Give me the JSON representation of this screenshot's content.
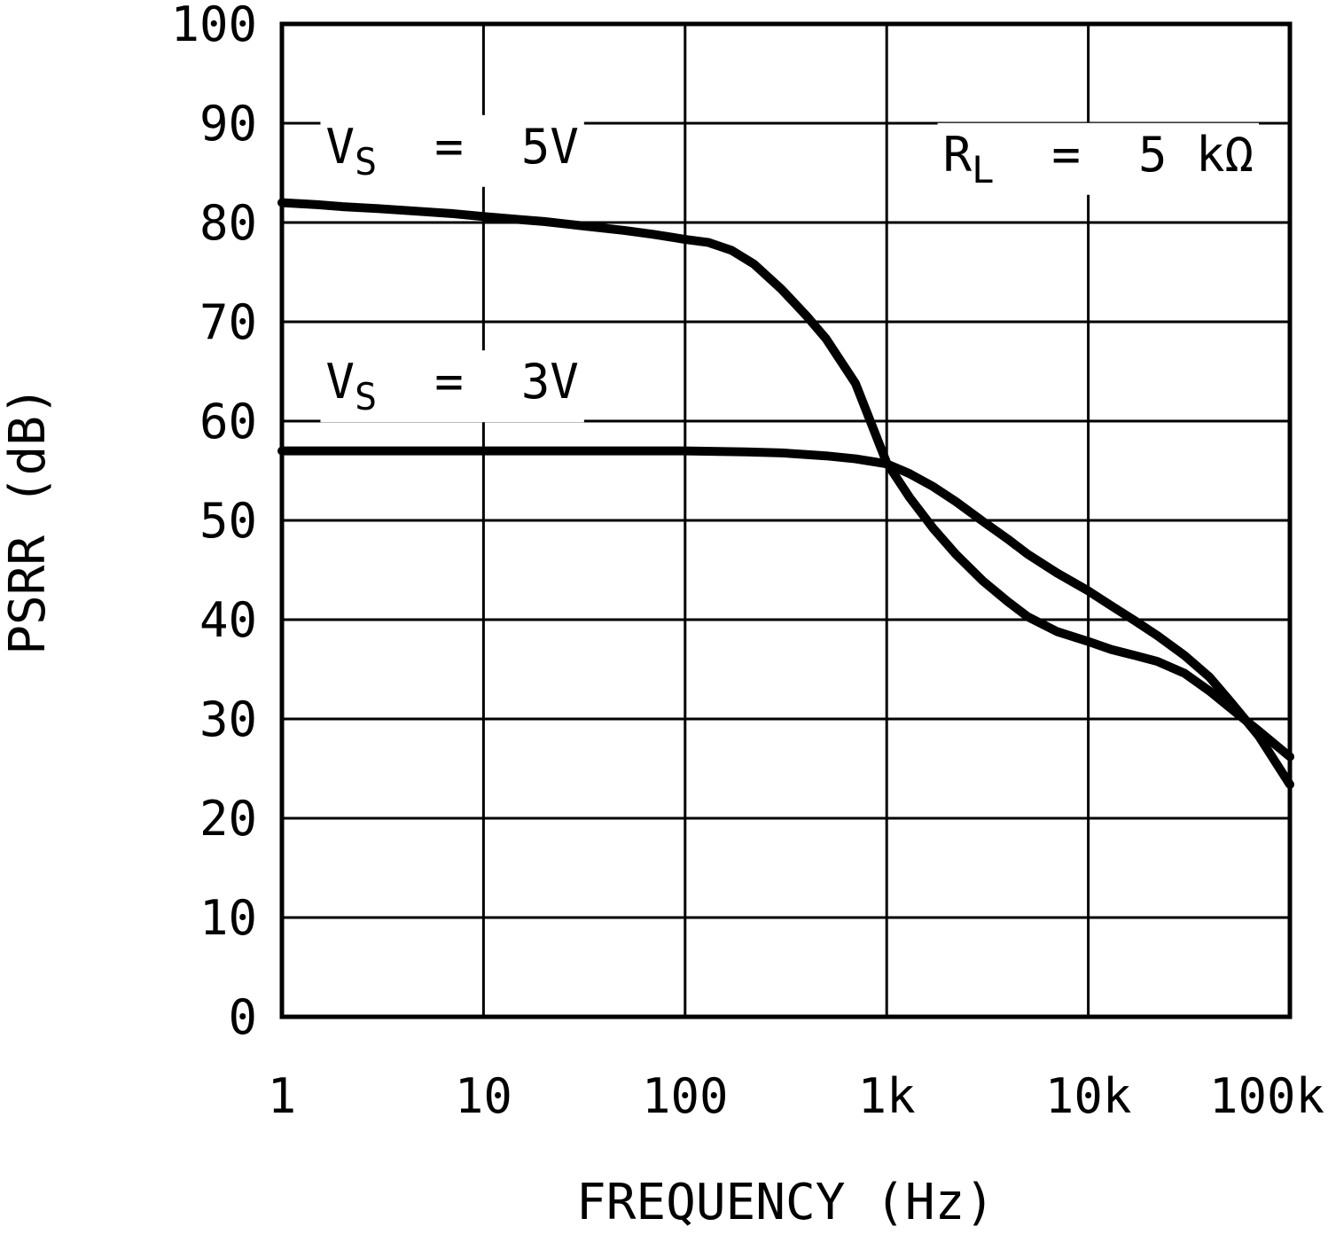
{
  "chart_data": {
    "type": "line",
    "title": "",
    "xlabel": "FREQUENCY (Hz)",
    "ylabel": "PSRR (dB)",
    "x_scale": "log",
    "xlim": [
      1,
      100000
    ],
    "ylim": [
      0,
      100
    ],
    "grid": true,
    "legend_position": "inline-annotations",
    "colors": {
      "line": "#000000",
      "grid": "#000000",
      "background": "#ffffff"
    },
    "x_ticks": [
      {
        "value": 1,
        "label": "1"
      },
      {
        "value": 10,
        "label": "10"
      },
      {
        "value": 100,
        "label": "100"
      },
      {
        "value": 1000,
        "label": "1k"
      },
      {
        "value": 10000,
        "label": "10k"
      },
      {
        "value": 100000,
        "label": "100k"
      }
    ],
    "y_ticks": [
      {
        "value": 0,
        "label": "0"
      },
      {
        "value": 10,
        "label": "10"
      },
      {
        "value": 20,
        "label": "20"
      },
      {
        "value": 30,
        "label": "30"
      },
      {
        "value": 40,
        "label": "40"
      },
      {
        "value": 50,
        "label": "50"
      },
      {
        "value": 60,
        "label": "60"
      },
      {
        "value": 70,
        "label": "70"
      },
      {
        "value": 80,
        "label": "80"
      },
      {
        "value": 90,
        "label": "90"
      },
      {
        "value": 100,
        "label": "100"
      }
    ],
    "series": [
      {
        "name": "VS = 5V",
        "slug": "vs-5v",
        "x": [
          1,
          1.5,
          2,
          3,
          5,
          7,
          10,
          15,
          20,
          30,
          50,
          70,
          100,
          130,
          170,
          220,
          300,
          400,
          500,
          700,
          1000,
          1300,
          1700,
          2200,
          3000,
          4000,
          5000,
          7000,
          10000,
          13000,
          17000,
          22000,
          30000,
          40000,
          50000,
          70000,
          100000
        ],
        "y": [
          82,
          81.8,
          81.6,
          81.4,
          81.1,
          80.9,
          80.6,
          80.3,
          80.1,
          79.7,
          79.2,
          78.8,
          78.3,
          78,
          77.2,
          75.8,
          73.3,
          70.6,
          68.3,
          63.8,
          55.8,
          52.3,
          49.2,
          46.6,
          43.9,
          41.8,
          40.3,
          38.8,
          37.8,
          37,
          36.4,
          35.8,
          34.6,
          32.8,
          31.2,
          28.8,
          26.2
        ]
      },
      {
        "name": "VS = 3V",
        "slug": "vs-3v",
        "x": [
          1,
          2,
          5,
          10,
          20,
          50,
          100,
          200,
          300,
          500,
          700,
          1000,
          1300,
          1700,
          2200,
          3000,
          4000,
          5000,
          7000,
          10000,
          13000,
          17000,
          22000,
          30000,
          40000,
          50000,
          70000,
          100000
        ],
        "y": [
          57,
          57,
          57,
          57,
          57,
          57,
          57,
          56.9,
          56.8,
          56.5,
          56.2,
          55.7,
          54.7,
          53.4,
          51.9,
          49.9,
          48.1,
          46.6,
          44.7,
          42.9,
          41.4,
          39.9,
          38.4,
          36.4,
          34.2,
          31.9,
          28.3,
          23.4
        ]
      }
    ],
    "annotations": [
      {
        "id": "label-vs-5v",
        "pre": "V",
        "sub": "S",
        "post": "  =  5V",
        "x": 1.65,
        "y": 86
      },
      {
        "id": "label-vs-3v",
        "pre": "V",
        "sub": "S",
        "post": "  =  3V",
        "x": 1.65,
        "y": 62.3
      },
      {
        "id": "label-rl",
        "pre": "R",
        "sub": "L",
        "post": "  =  5 kΩ",
        "x": 1900,
        "y": 85.2
      }
    ]
  }
}
